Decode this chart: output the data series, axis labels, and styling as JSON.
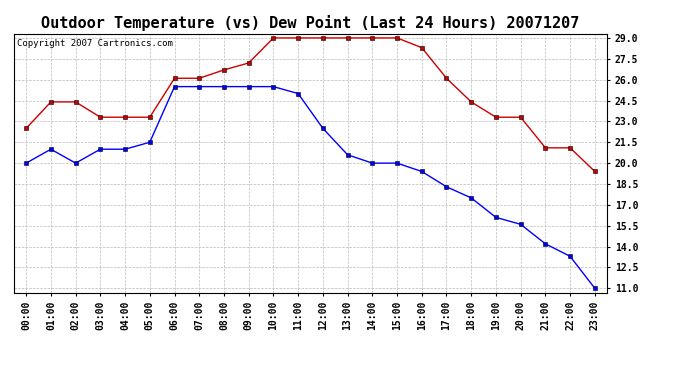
{
  "title": "Outdoor Temperature (vs) Dew Point (Last 24 Hours) 20071207",
  "copyright_text": "Copyright 2007 Cartronics.com",
  "x_labels": [
    "00:00",
    "01:00",
    "02:00",
    "03:00",
    "04:00",
    "05:00",
    "06:00",
    "07:00",
    "08:00",
    "09:00",
    "10:00",
    "11:00",
    "12:00",
    "13:00",
    "14:00",
    "15:00",
    "16:00",
    "17:00",
    "18:00",
    "19:00",
    "20:00",
    "21:00",
    "22:00",
    "23:00"
  ],
  "temp_data": [
    20.0,
    21.0,
    20.0,
    21.0,
    21.0,
    21.5,
    25.5,
    25.5,
    25.5,
    25.5,
    25.5,
    25.0,
    22.5,
    20.6,
    20.0,
    20.0,
    19.4,
    18.3,
    17.5,
    16.1,
    15.6,
    14.2,
    13.3,
    11.0
  ],
  "dew_data": [
    22.5,
    24.4,
    24.4,
    23.3,
    23.3,
    23.3,
    26.1,
    26.1,
    26.7,
    27.2,
    29.0,
    29.0,
    29.0,
    29.0,
    29.0,
    29.0,
    28.3,
    26.1,
    24.4,
    23.3,
    23.3,
    21.1,
    21.1,
    19.4
  ],
  "temp_color": "#0000ff",
  "dew_color": "#cc0000",
  "ylim_min": 11.0,
  "ylim_max": 29.0,
  "yticks": [
    11.0,
    12.5,
    14.0,
    15.5,
    17.0,
    18.5,
    20.0,
    21.5,
    23.0,
    24.5,
    26.0,
    27.5,
    29.0
  ],
  "bg_color": "#ffffff",
  "grid_color": "#bbbbbb",
  "title_fontsize": 11,
  "tick_fontsize": 7,
  "copyright_fontsize": 6.5,
  "marker_size": 3
}
